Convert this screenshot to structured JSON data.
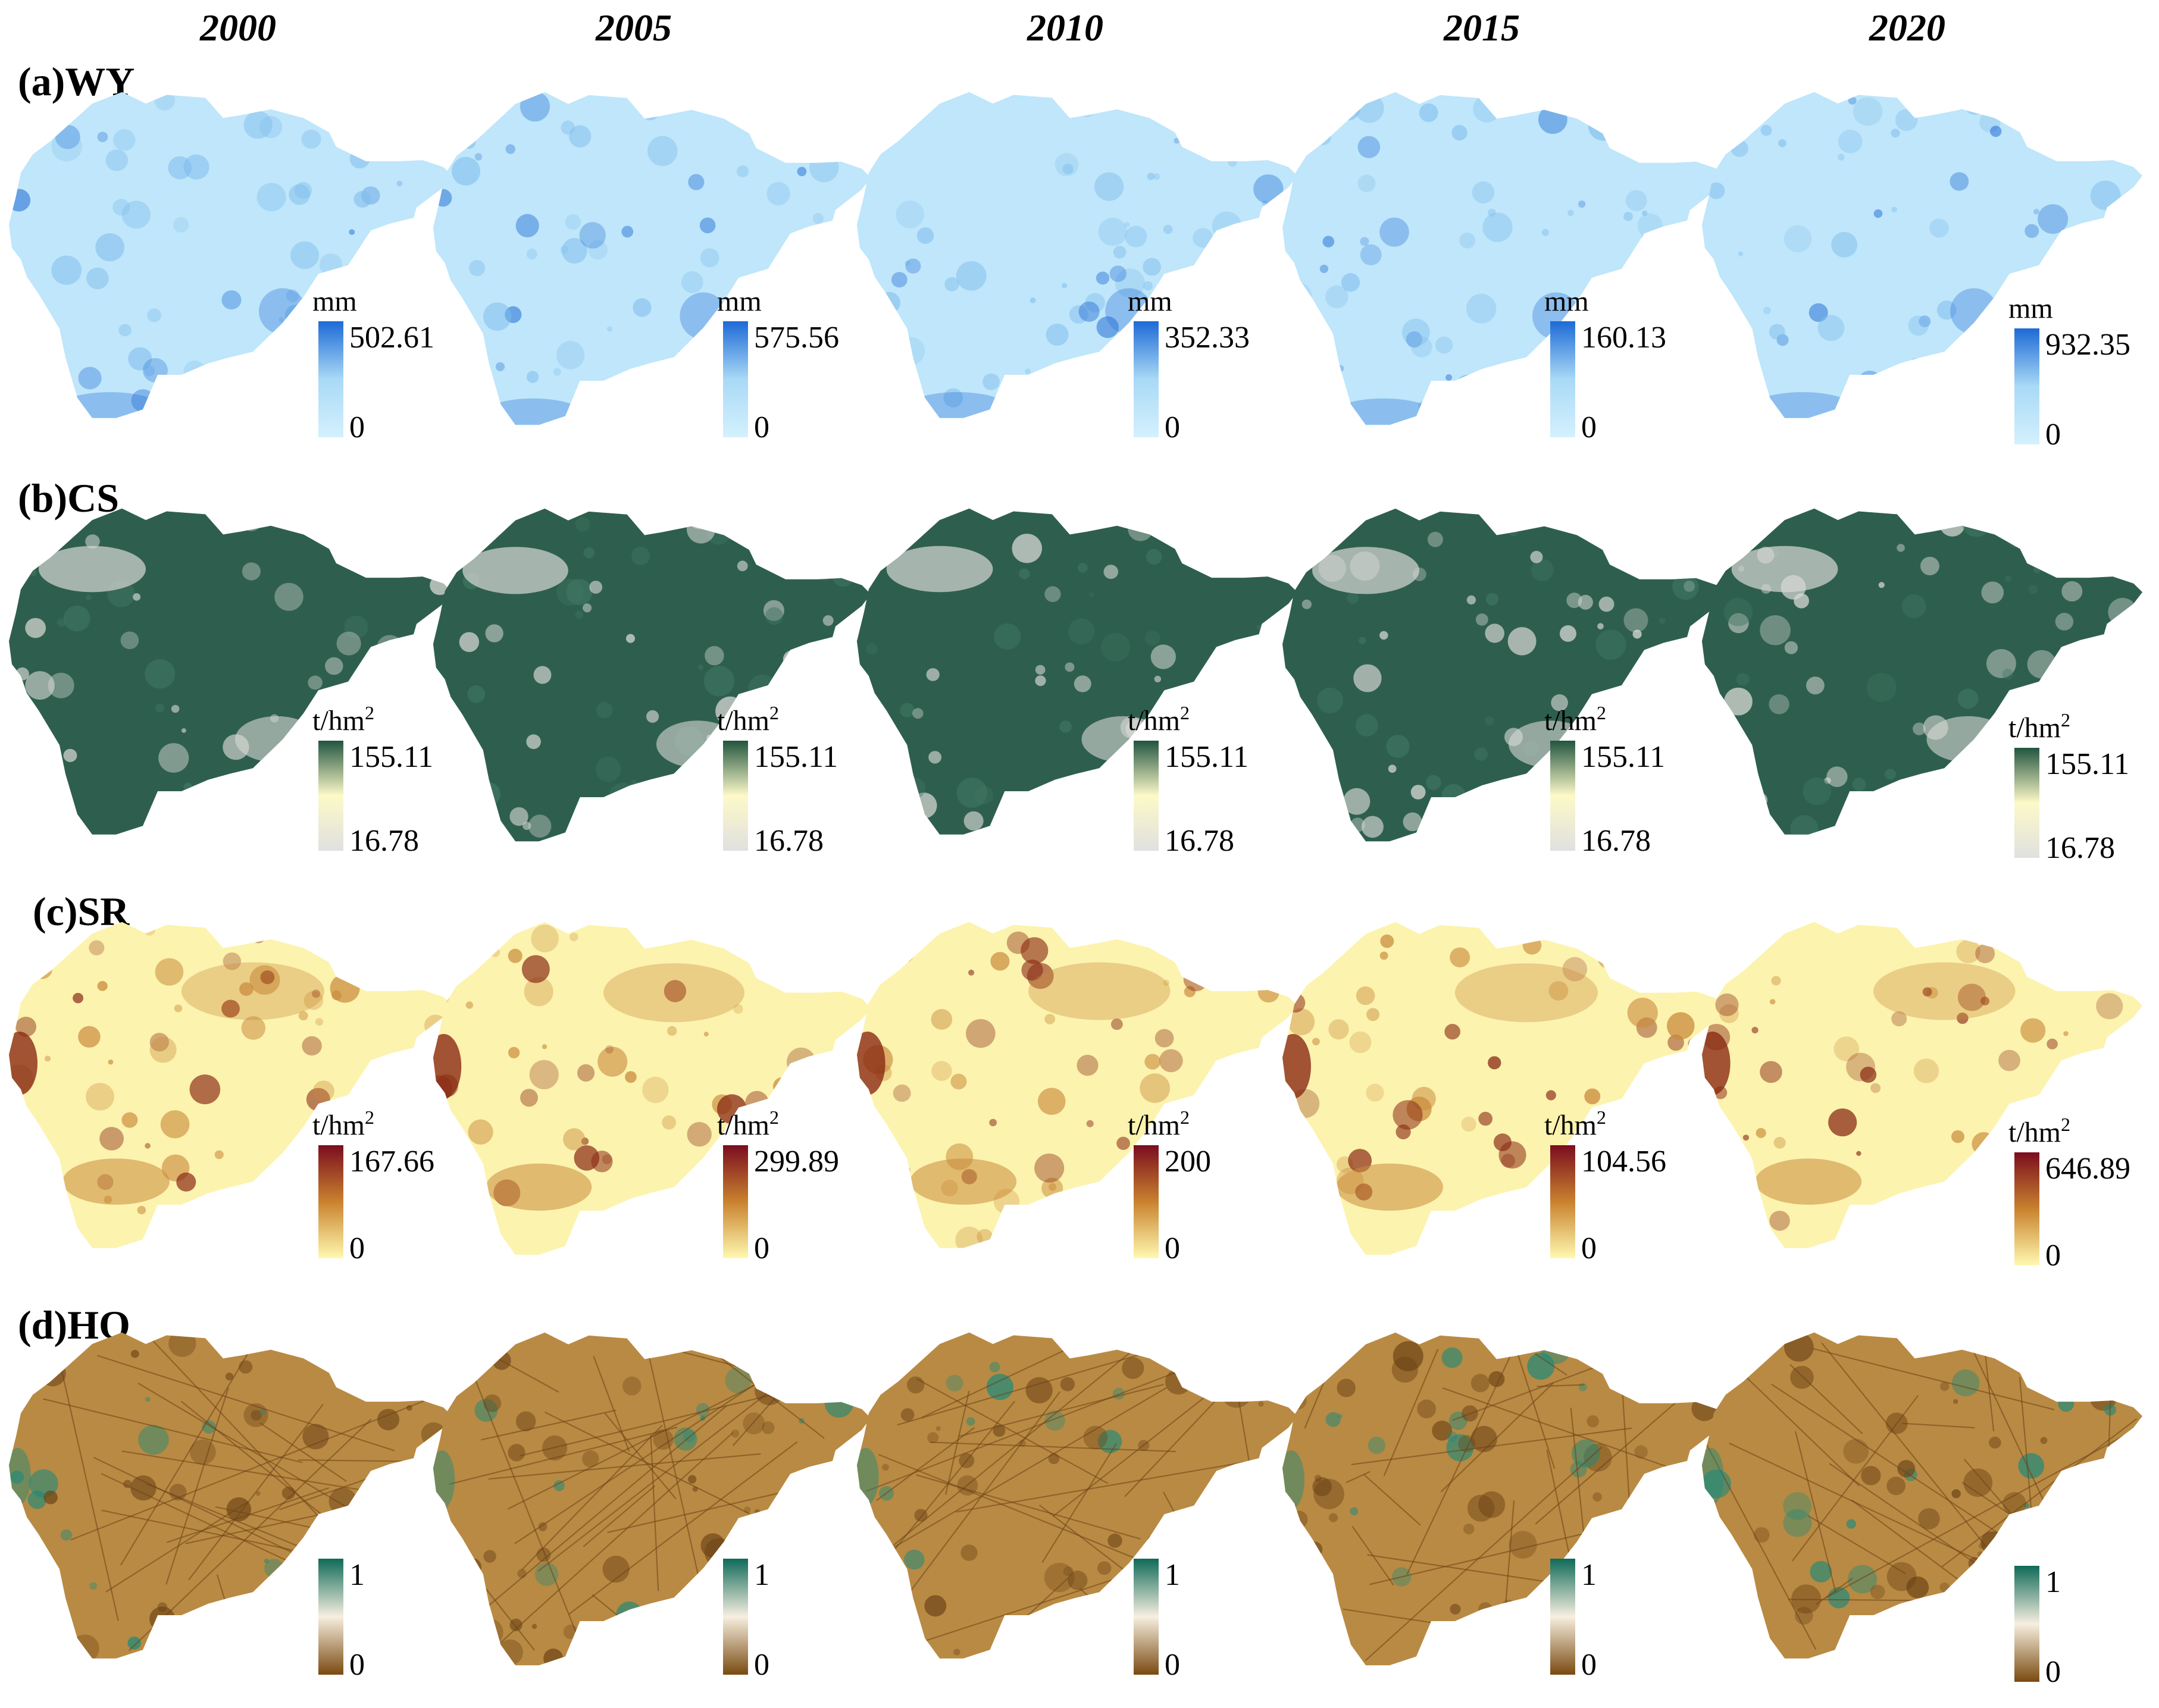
{
  "figure": {
    "years": [
      "2000",
      "2005",
      "2010",
      "2015",
      "2020"
    ],
    "rows": [
      {
        "label": "(a)WY",
        "unit": "mm",
        "unit_sup": "",
        "colors": {
          "low": "#cdeefb",
          "base": "#bfe6fa",
          "mid": "#7fbcec",
          "high": "#2a73d6"
        },
        "legend_colors": [
          "#d4f1fd",
          "#a9d9f6",
          "#1d6ad6"
        ],
        "max_labels": [
          "502.61",
          "575.56",
          "352.33",
          "160.13",
          "932.35"
        ],
        "min_labels": [
          "0",
          "0",
          "0",
          "0",
          "0"
        ]
      },
      {
        "label": "(b)CS",
        "unit": "t/hm",
        "unit_sup": "2",
        "colors": {
          "low": "#d9d9d6",
          "base": "#2e5f4e",
          "mid": "#3f7562",
          "high": "#234d3e"
        },
        "legend_colors": [
          "#e0e0e0",
          "#fdf9c8",
          "#21553f"
        ],
        "max_labels": [
          "155.11",
          "155.11",
          "155.11",
          "155.11",
          "155.11"
        ],
        "min_labels": [
          "16.78",
          "16.78",
          "16.78",
          "16.78",
          "16.78"
        ]
      },
      {
        "label": "(c)SR",
        "unit": "t/hm",
        "unit_sup": "2",
        "colors": {
          "low": "#fff7b8",
          "base": "#fcf3ae",
          "mid": "#c98a3c",
          "high": "#8a2a14"
        },
        "legend_colors": [
          "#fff9b0",
          "#c9822e",
          "#7a0d1f"
        ],
        "max_labels": [
          "167.66",
          "299.89",
          "200",
          "104.56",
          "646.89"
        ],
        "min_labels": [
          "0",
          "0",
          "0",
          "0",
          "0"
        ]
      },
      {
        "label": "(d)HQ",
        "unit": "",
        "unit_sup": "",
        "colors": {
          "low": "#1a8a7c",
          "base": "#b98a43",
          "mid": "#8a5a22",
          "high": "#6b4216"
        },
        "legend_colors": [
          "#7a4a10",
          "#f7efe0",
          "#0f6a58"
        ],
        "max_labels": [
          "1",
          "1",
          "1",
          "1",
          "1"
        ],
        "min_labels": [
          "0",
          "0",
          "0",
          "0",
          "0"
        ]
      }
    ]
  }
}
